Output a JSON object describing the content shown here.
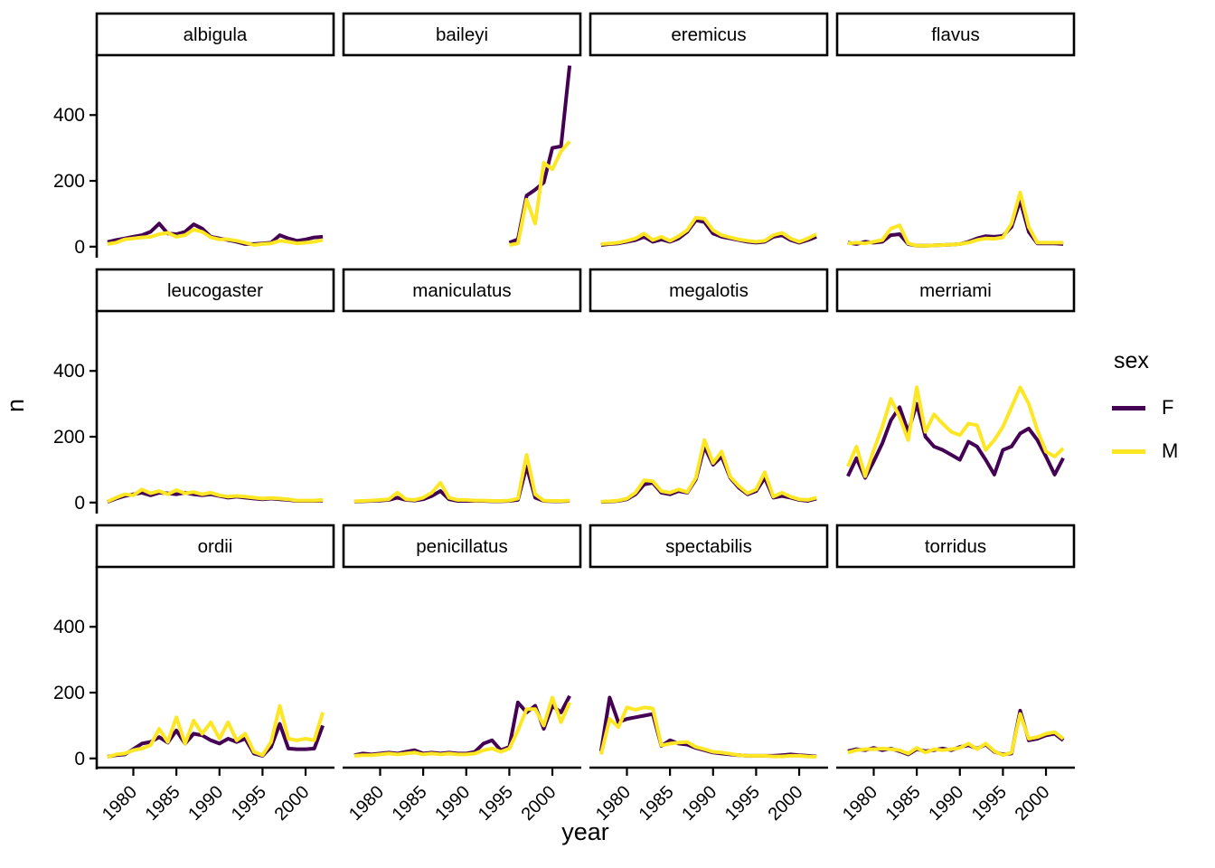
{
  "chart_data": {
    "type": "line",
    "title": "",
    "xlabel": "year",
    "ylabel": "n",
    "x": [
      1977,
      1978,
      1979,
      1980,
      1981,
      1982,
      1983,
      1984,
      1985,
      1986,
      1987,
      1988,
      1989,
      1990,
      1991,
      1992,
      1993,
      1994,
      1995,
      1996,
      1997,
      1998,
      1999,
      2000,
      2001,
      2002
    ],
    "xticks": [
      1980,
      1985,
      1990,
      1995,
      2000
    ],
    "yticks": [
      0,
      200,
      400
    ],
    "ylim": [
      0,
      560
    ],
    "grid": false,
    "legend": {
      "title": "sex",
      "position": "right"
    },
    "series_meta": [
      {
        "label": "F",
        "color": "#440154"
      },
      {
        "label": "M",
        "color": "#FDE725"
      }
    ],
    "facets": [
      {
        "name": "albigula",
        "F": [
          14,
          20,
          25,
          30,
          35,
          45,
          70,
          40,
          38,
          45,
          68,
          55,
          30,
          25,
          20,
          15,
          8,
          8,
          10,
          12,
          35,
          25,
          18,
          22,
          28,
          30
        ],
        "M": [
          8,
          12,
          22,
          25,
          28,
          30,
          38,
          42,
          30,
          35,
          52,
          45,
          28,
          22,
          22,
          18,
          12,
          5,
          8,
          10,
          18,
          15,
          10,
          12,
          15,
          20
        ]
      },
      {
        "name": "baileyi",
        "F": [
          null,
          null,
          null,
          null,
          null,
          null,
          null,
          null,
          null,
          null,
          null,
          null,
          null,
          null,
          null,
          null,
          null,
          null,
          12,
          22,
          155,
          173,
          195,
          300,
          305,
          550
        ],
        "M": [
          null,
          null,
          null,
          null,
          null,
          null,
          null,
          null,
          null,
          null,
          null,
          null,
          null,
          null,
          null,
          null,
          null,
          null,
          5,
          10,
          143,
          70,
          255,
          235,
          290,
          320
        ]
      },
      {
        "name": "eremicus",
        "F": [
          5,
          8,
          10,
          15,
          20,
          30,
          15,
          22,
          15,
          25,
          45,
          80,
          75,
          40,
          30,
          25,
          20,
          15,
          12,
          15,
          30,
          35,
          20,
          12,
          20,
          30
        ],
        "M": [
          8,
          10,
          12,
          18,
          25,
          40,
          20,
          30,
          18,
          32,
          50,
          88,
          85,
          50,
          35,
          28,
          22,
          18,
          15,
          18,
          35,
          42,
          25,
          15,
          25,
          38
        ]
      },
      {
        "name": "flavus",
        "F": [
          12,
          8,
          15,
          12,
          15,
          35,
          38,
          8,
          3,
          3,
          4,
          5,
          6,
          8,
          15,
          25,
          32,
          30,
          33,
          60,
          140,
          45,
          10,
          10,
          10,
          8
        ],
        "M": [
          10,
          12,
          10,
          15,
          20,
          55,
          65,
          10,
          3,
          3,
          4,
          5,
          6,
          8,
          12,
          20,
          25,
          24,
          28,
          70,
          165,
          60,
          12,
          12,
          12,
          12
        ]
      },
      {
        "name": "leucogaster",
        "F": [
          2,
          12,
          20,
          25,
          30,
          22,
          30,
          28,
          25,
          30,
          25,
          22,
          25,
          20,
          15,
          18,
          15,
          12,
          10,
          12,
          10,
          8,
          5,
          5,
          5,
          6
        ],
        "M": [
          3,
          15,
          25,
          22,
          40,
          28,
          35,
          25,
          38,
          28,
          32,
          25,
          30,
          22,
          18,
          20,
          18,
          15,
          12,
          14,
          12,
          10,
          6,
          6,
          6,
          8
        ]
      },
      {
        "name": "maniculatus",
        "F": [
          3,
          4,
          5,
          6,
          8,
          15,
          8,
          6,
          10,
          20,
          35,
          10,
          5,
          5,
          5,
          5,
          4,
          4,
          5,
          8,
          110,
          15,
          5,
          4,
          4,
          5
        ],
        "M": [
          4,
          5,
          6,
          8,
          10,
          30,
          10,
          8,
          15,
          30,
          60,
          15,
          8,
          8,
          6,
          6,
          5,
          5,
          6,
          12,
          145,
          25,
          6,
          5,
          5,
          6
        ]
      },
      {
        "name": "megalotis",
        "F": [
          2,
          3,
          5,
          10,
          25,
          55,
          60,
          30,
          25,
          35,
          30,
          70,
          170,
          115,
          140,
          75,
          45,
          25,
          35,
          75,
          15,
          20,
          15,
          8,
          5,
          12
        ],
        "M": [
          3,
          4,
          6,
          12,
          30,
          68,
          65,
          35,
          30,
          40,
          32,
          75,
          190,
          120,
          155,
          78,
          50,
          28,
          40,
          92,
          18,
          30,
          18,
          10,
          8,
          15
        ]
      },
      {
        "name": "merriami",
        "F": [
          80,
          135,
          75,
          125,
          180,
          250,
          290,
          215,
          300,
          200,
          170,
          160,
          145,
          130,
          185,
          170,
          130,
          85,
          160,
          170,
          210,
          225,
          190,
          140,
          85,
          135
        ],
        "M": [
          110,
          170,
          80,
          160,
          230,
          315,
          260,
          190,
          350,
          215,
          268,
          240,
          215,
          205,
          240,
          235,
          160,
          190,
          230,
          290,
          350,
          300,
          220,
          155,
          140,
          165
        ]
      },
      {
        "name": "ordii",
        "F": [
          5,
          10,
          12,
          28,
          45,
          50,
          65,
          48,
          85,
          45,
          75,
          70,
          55,
          45,
          60,
          50,
          60,
          15,
          8,
          35,
          105,
          30,
          28,
          28,
          30,
          100
        ],
        "M": [
          4,
          12,
          15,
          25,
          30,
          40,
          90,
          50,
          125,
          45,
          115,
          75,
          110,
          60,
          110,
          55,
          75,
          20,
          10,
          50,
          160,
          60,
          55,
          60,
          55,
          140
        ]
      },
      {
        "name": "penicillatus",
        "F": [
          10,
          15,
          12,
          15,
          18,
          15,
          20,
          25,
          15,
          18,
          15,
          18,
          15,
          15,
          20,
          45,
          55,
          25,
          35,
          170,
          140,
          160,
          90,
          160,
          140,
          190
        ],
        "M": [
          8,
          10,
          10,
          12,
          15,
          12,
          15,
          18,
          12,
          15,
          12,
          15,
          12,
          12,
          15,
          25,
          30,
          20,
          30,
          85,
          150,
          150,
          100,
          185,
          110,
          170
        ]
      },
      {
        "name": "spectabilis",
        "F": [
          22,
          185,
          110,
          120,
          125,
          130,
          135,
          38,
          55,
          45,
          42,
          32,
          25,
          18,
          15,
          12,
          10,
          8,
          8,
          8,
          8,
          10,
          12,
          10,
          8,
          6
        ],
        "M": [
          12,
          120,
          95,
          155,
          148,
          155,
          152,
          40,
          45,
          48,
          50,
          35,
          28,
          20,
          18,
          14,
          10,
          8,
          8,
          8,
          6,
          6,
          8,
          8,
          6,
          5
        ]
      },
      {
        "name": "torridus",
        "F": [
          22,
          28,
          25,
          32,
          25,
          30,
          22,
          12,
          28,
          22,
          25,
          30,
          25,
          35,
          40,
          30,
          42,
          20,
          12,
          15,
          145,
          55,
          60,
          70,
          75,
          55
        ],
        "M": [
          18,
          25,
          28,
          28,
          30,
          28,
          25,
          15,
          32,
          18,
          28,
          25,
          28,
          32,
          45,
          28,
          45,
          22,
          10,
          18,
          135,
          60,
          65,
          75,
          80,
          60
        ]
      }
    ]
  }
}
